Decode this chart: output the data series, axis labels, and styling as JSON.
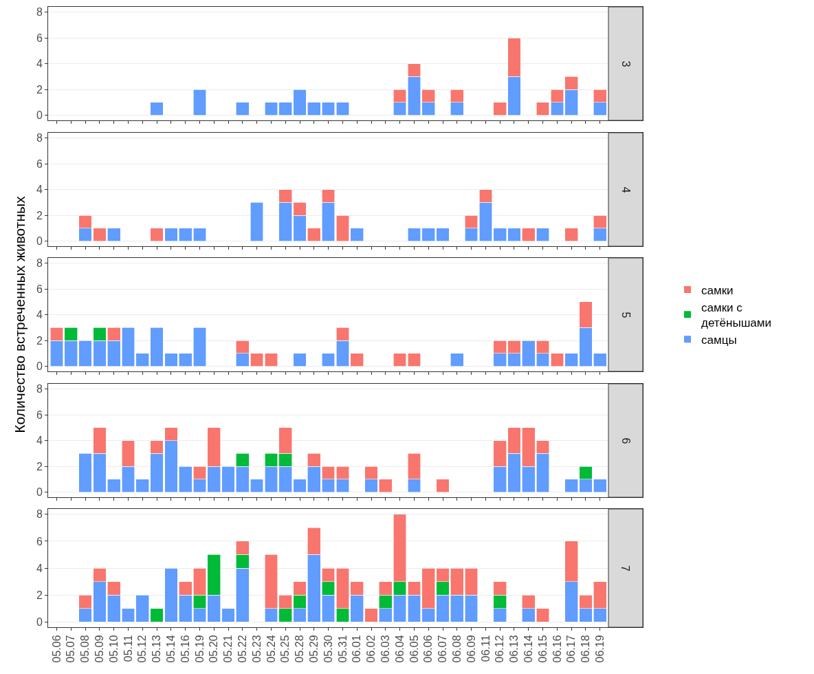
{
  "chart_data": [
    {
      "type": "bar",
      "annotations": [
        "3"
      ],
      "stacked": true,
      "grid": "y",
      "legend": false,
      "tick_labels": "y",
      "ylim": [
        -0.4,
        8.4
      ],
      "yticks": [
        0,
        2,
        4,
        6,
        8
      ],
      "categories": [
        "05.06",
        "05.07",
        "05.08",
        "05.09",
        "05.10",
        "05.11",
        "05.12",
        "05.13",
        "05.14",
        "05.16",
        "05.19",
        "05.20",
        "05.21",
        "05.22",
        "05.23",
        "05.24",
        "05.25",
        "05.28",
        "05.29",
        "05.30",
        "05.31",
        "06.01",
        "06.02",
        "06.03",
        "06.04",
        "06.05",
        "06.06",
        "06.07",
        "06.08",
        "06.09",
        "06.11",
        "06.12",
        "06.13",
        "06.14",
        "06.15",
        "06.16",
        "06.17",
        "06.18",
        "06.19"
      ],
      "series": [
        {
          "color": "#619cff",
          "values": [
            null,
            null,
            null,
            null,
            null,
            null,
            null,
            1,
            null,
            null,
            2,
            null,
            null,
            1,
            null,
            1,
            1,
            2,
            1,
            1,
            1,
            null,
            null,
            null,
            1,
            3,
            1,
            null,
            1,
            null,
            null,
            null,
            3,
            null,
            null,
            1,
            2,
            null,
            1
          ]
        },
        {
          "color": "#f8766d",
          "values": [
            null,
            null,
            null,
            null,
            null,
            null,
            null,
            null,
            null,
            null,
            null,
            null,
            null,
            null,
            null,
            null,
            null,
            null,
            null,
            null,
            null,
            null,
            null,
            null,
            1,
            1,
            1,
            null,
            1,
            null,
            null,
            1,
            3,
            null,
            1,
            1,
            1,
            null,
            1
          ]
        }
      ]
    },
    {
      "type": "bar",
      "annotations": [
        "4"
      ],
      "stacked": true,
      "grid": "y",
      "legend": false,
      "tick_labels": "y",
      "ylim": [
        -0.4,
        8.4
      ],
      "yticks": [
        0,
        2,
        4,
        6,
        8
      ],
      "categories": [
        "05.06",
        "05.07",
        "05.08",
        "05.09",
        "05.10",
        "05.11",
        "05.12",
        "05.13",
        "05.14",
        "05.16",
        "05.19",
        "05.20",
        "05.21",
        "05.22",
        "05.23",
        "05.24",
        "05.25",
        "05.28",
        "05.29",
        "05.30",
        "05.31",
        "06.01",
        "06.02",
        "06.03",
        "06.04",
        "06.05",
        "06.06",
        "06.07",
        "06.08",
        "06.09",
        "06.11",
        "06.12",
        "06.13",
        "06.14",
        "06.15",
        "06.16",
        "06.17",
        "06.18",
        "06.19"
      ],
      "series": [
        {
          "color": "#619cff",
          "values": [
            null,
            null,
            1,
            null,
            1,
            null,
            null,
            null,
            1,
            1,
            1,
            null,
            null,
            null,
            3,
            null,
            3,
            2,
            null,
            3,
            null,
            1,
            null,
            null,
            null,
            1,
            1,
            1,
            null,
            1,
            3,
            1,
            1,
            null,
            1,
            null,
            null,
            null,
            1
          ]
        },
        {
          "color": "#f8766d",
          "values": [
            null,
            null,
            1,
            1,
            null,
            null,
            null,
            1,
            null,
            null,
            null,
            null,
            null,
            null,
            null,
            null,
            1,
            1,
            1,
            1,
            2,
            null,
            null,
            null,
            null,
            null,
            null,
            null,
            null,
            1,
            1,
            null,
            null,
            1,
            null,
            null,
            1,
            null,
            1
          ]
        }
      ]
    },
    {
      "type": "bar",
      "annotations": [
        "5"
      ],
      "ylabel": "Количество встреченных животных",
      "stacked": true,
      "grid": "y",
      "legend": "right",
      "tick_labels": "y",
      "ylim": [
        -0.4,
        8.4
      ],
      "yticks": [
        0,
        2,
        4,
        6,
        8
      ],
      "categories": [
        "05.06",
        "05.07",
        "05.08",
        "05.09",
        "05.10",
        "05.11",
        "05.12",
        "05.13",
        "05.14",
        "05.16",
        "05.19",
        "05.20",
        "05.21",
        "05.22",
        "05.23",
        "05.24",
        "05.25",
        "05.28",
        "05.29",
        "05.30",
        "05.31",
        "06.01",
        "06.02",
        "06.03",
        "06.04",
        "06.05",
        "06.06",
        "06.07",
        "06.08",
        "06.09",
        "06.11",
        "06.12",
        "06.13",
        "06.14",
        "06.15",
        "06.16",
        "06.17",
        "06.18",
        "06.19"
      ],
      "series": [
        {
          "name": "самцы",
          "color": "#619cff",
          "values": [
            2,
            2,
            2,
            2,
            2,
            3,
            1,
            3,
            1,
            1,
            3,
            null,
            null,
            1,
            null,
            null,
            null,
            1,
            null,
            1,
            2,
            null,
            null,
            null,
            null,
            null,
            null,
            null,
            1,
            null,
            null,
            1,
            1,
            2,
            1,
            null,
            1,
            3,
            1
          ]
        },
        {
          "name": "самки с детёнышами",
          "color": "#00ba38",
          "values": [
            null,
            1,
            null,
            1,
            null,
            null,
            null,
            null,
            null,
            null,
            null,
            null,
            null,
            null,
            null,
            null,
            null,
            null,
            null,
            null,
            null,
            null,
            null,
            null,
            null,
            null,
            null,
            null,
            null,
            null,
            null,
            null,
            null,
            null,
            null,
            null,
            null,
            null,
            null
          ]
        },
        {
          "name": "самки",
          "color": "#f8766d",
          "values": [
            1,
            null,
            null,
            null,
            1,
            null,
            null,
            null,
            null,
            null,
            null,
            null,
            null,
            1,
            1,
            1,
            null,
            null,
            null,
            null,
            1,
            1,
            null,
            null,
            1,
            1,
            null,
            null,
            null,
            null,
            null,
            1,
            1,
            null,
            1,
            1,
            null,
            2,
            null
          ]
        }
      ]
    },
    {
      "type": "bar",
      "annotations": [
        "6"
      ],
      "stacked": true,
      "grid": "y",
      "legend": false,
      "tick_labels": "y",
      "ylim": [
        -0.4,
        8.4
      ],
      "yticks": [
        0,
        2,
        4,
        6,
        8
      ],
      "categories": [
        "05.06",
        "05.07",
        "05.08",
        "05.09",
        "05.10",
        "05.11",
        "05.12",
        "05.13",
        "05.14",
        "05.16",
        "05.19",
        "05.20",
        "05.21",
        "05.22",
        "05.23",
        "05.24",
        "05.25",
        "05.28",
        "05.29",
        "05.30",
        "05.31",
        "06.01",
        "06.02",
        "06.03",
        "06.04",
        "06.05",
        "06.06",
        "06.07",
        "06.08",
        "06.09",
        "06.11",
        "06.12",
        "06.13",
        "06.14",
        "06.15",
        "06.16",
        "06.17",
        "06.18",
        "06.19"
      ],
      "series": [
        {
          "color": "#619cff",
          "values": [
            null,
            null,
            3,
            3,
            1,
            2,
            1,
            3,
            4,
            2,
            1,
            2,
            2,
            2,
            1,
            2,
            2,
            1,
            2,
            1,
            1,
            null,
            1,
            null,
            null,
            1,
            null,
            null,
            null,
            null,
            null,
            2,
            3,
            2,
            3,
            null,
            1,
            1,
            1
          ]
        },
        {
          "color": "#00ba38",
          "values": [
            null,
            null,
            null,
            null,
            null,
            null,
            null,
            null,
            null,
            null,
            null,
            null,
            null,
            1,
            null,
            1,
            1,
            null,
            null,
            null,
            null,
            null,
            null,
            null,
            null,
            null,
            null,
            null,
            null,
            null,
            null,
            null,
            null,
            null,
            null,
            null,
            null,
            1,
            null
          ]
        },
        {
          "color": "#f8766d",
          "values": [
            null,
            null,
            null,
            2,
            null,
            2,
            null,
            1,
            1,
            null,
            1,
            3,
            null,
            null,
            null,
            null,
            2,
            null,
            1,
            1,
            1,
            null,
            1,
            1,
            null,
            2,
            null,
            1,
            null,
            null,
            null,
            2,
            2,
            3,
            1,
            null,
            null,
            null,
            null
          ]
        }
      ]
    },
    {
      "type": "bar",
      "annotations": [
        "7"
      ],
      "stacked": true,
      "grid": "y",
      "legend": false,
      "ylim": [
        -0.4,
        8.4
      ],
      "yticks": [
        0,
        2,
        4,
        6,
        8
      ],
      "categories": [
        "05.06",
        "05.07",
        "05.08",
        "05.09",
        "05.10",
        "05.11",
        "05.12",
        "05.13",
        "05.14",
        "05.16",
        "05.19",
        "05.20",
        "05.21",
        "05.22",
        "05.23",
        "05.24",
        "05.25",
        "05.28",
        "05.29",
        "05.30",
        "05.31",
        "06.01",
        "06.02",
        "06.03",
        "06.04",
        "06.05",
        "06.06",
        "06.07",
        "06.08",
        "06.09",
        "06.11",
        "06.12",
        "06.13",
        "06.14",
        "06.15",
        "06.16",
        "06.17",
        "06.18",
        "06.19"
      ],
      "series": [
        {
          "color": "#619cff",
          "values": [
            null,
            null,
            1,
            3,
            2,
            1,
            2,
            null,
            4,
            2,
            1,
            2,
            1,
            4,
            null,
            1,
            null,
            1,
            5,
            2,
            null,
            2,
            null,
            1,
            2,
            2,
            1,
            2,
            2,
            2,
            null,
            1,
            null,
            1,
            null,
            null,
            3,
            1,
            1
          ]
        },
        {
          "color": "#00ba38",
          "values": [
            null,
            null,
            null,
            null,
            null,
            null,
            null,
            1,
            null,
            null,
            1,
            3,
            null,
            1,
            null,
            null,
            1,
            1,
            null,
            1,
            1,
            null,
            null,
            1,
            1,
            null,
            null,
            1,
            null,
            null,
            null,
            1,
            null,
            null,
            null,
            null,
            null,
            null,
            null
          ]
        },
        {
          "color": "#f8766d",
          "values": [
            null,
            null,
            1,
            1,
            1,
            null,
            null,
            null,
            null,
            1,
            2,
            null,
            null,
            1,
            null,
            4,
            1,
            1,
            2,
            1,
            3,
            1,
            1,
            1,
            5,
            1,
            3,
            1,
            2,
            2,
            null,
            1,
            null,
            1,
            1,
            null,
            3,
            1,
            2
          ]
        }
      ]
    }
  ]
}
